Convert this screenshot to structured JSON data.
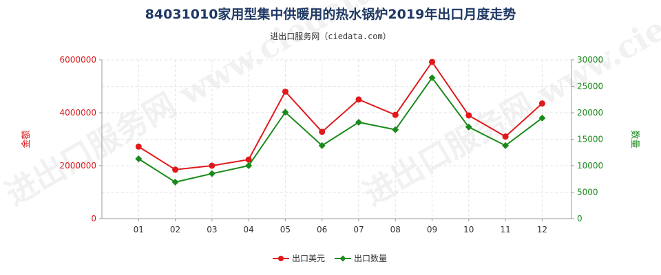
{
  "title": "84031010家用型集中供暖用的热水锅炉2019年出口月度走势",
  "subtitle": "进出口服务网（ciedata.com）",
  "watermark": "进出口服务网 www.ciedata.com",
  "colors": {
    "left_axis": "#e0191b",
    "right_axis": "#1a8a1a",
    "series1": "#e0191b",
    "series2": "#1a8a1a",
    "axis": "#999999"
  },
  "chart_data": {
    "type": "line",
    "title": "84031010家用型集中供暖用的热水锅炉2019年出口月度走势",
    "categories": [
      "01",
      "02",
      "03",
      "04",
      "05",
      "06",
      "07",
      "08",
      "09",
      "10",
      "11",
      "12"
    ],
    "y_left": {
      "label": "金额",
      "min": 0,
      "max": 6000000,
      "ticks": [
        "0",
        "2000000",
        "4000000",
        "6000000"
      ]
    },
    "y_right": {
      "label": "数量",
      "min": 0,
      "max": 30000,
      "ticks": [
        "0",
        "5000",
        "10000",
        "15000",
        "20000",
        "25000",
        "30000"
      ]
    },
    "series": [
      {
        "name": "出口美元",
        "axis": "left",
        "values": [
          2720000,
          1850000,
          2000000,
          2230000,
          4800000,
          3280000,
          4500000,
          3920000,
          5920000,
          3900000,
          3100000,
          4350000
        ]
      },
      {
        "name": "出口数量",
        "axis": "right",
        "values": [
          11300,
          6900,
          8500,
          10000,
          20100,
          13800,
          18200,
          16800,
          26600,
          17300,
          13800,
          19000
        ]
      }
    ],
    "legend_position": "bottom-center",
    "grid": true
  }
}
